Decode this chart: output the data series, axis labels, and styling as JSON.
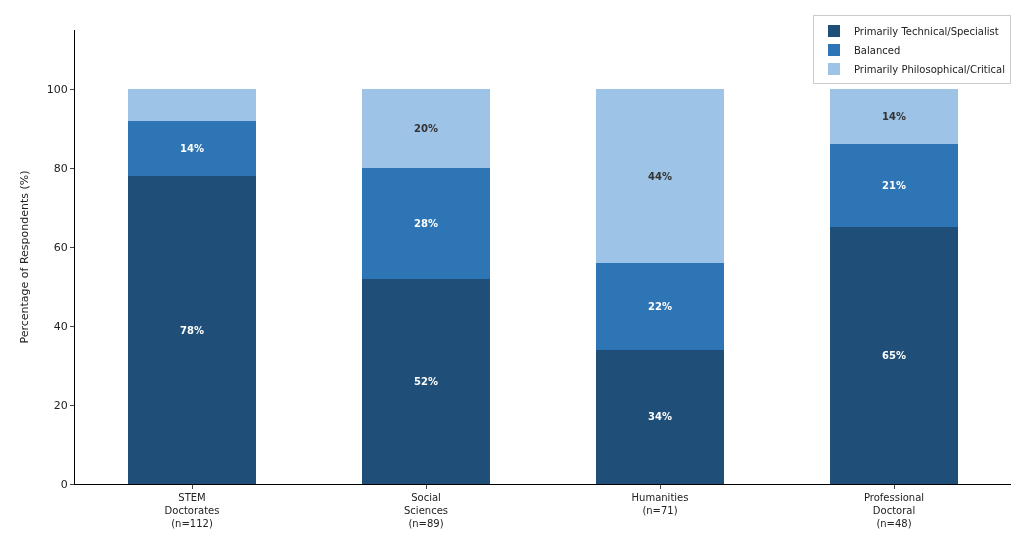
{
  "chart_data": {
    "type": "bar",
    "stacked": true,
    "categories": [
      "STEM\nDoctorates\n(n=112)",
      "Social\nSciences\n(n=89)",
      "Humanities\n(n=71)",
      "Professional\nDoctoral\n(n=48)"
    ],
    "ylabel": "Percentage of Respondents (%)",
    "ylim": [
      0,
      115
    ],
    "yticks": [
      0,
      20,
      40,
      60,
      80,
      100
    ],
    "series": [
      {
        "name": "Primarily Technical/Specialist",
        "color": "#1f4e79",
        "values": [
          78,
          52,
          34,
          65
        ],
        "value_labels": [
          "78%",
          "52%",
          "34%",
          "65%"
        ]
      },
      {
        "name": "Balanced",
        "color": "#2e75b6",
        "values": [
          14,
          28,
          22,
          21
        ],
        "value_labels": [
          "14%",
          "28%",
          "22%",
          "21%"
        ]
      },
      {
        "name": "Primarily Philosophical/Critical",
        "color": "#9dc3e6",
        "values": [
          8,
          20,
          44,
          14
        ],
        "value_labels": [
          null,
          "20%",
          "44%",
          "14%"
        ]
      }
    ],
    "legend": "top right"
  }
}
